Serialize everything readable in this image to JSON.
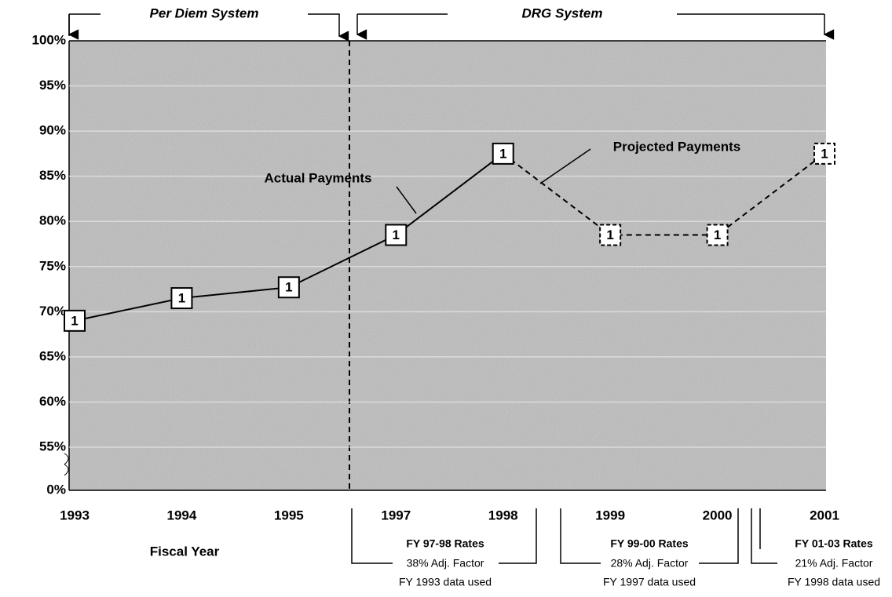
{
  "chart_data": {
    "type": "line",
    "categories": [
      "1993",
      "1994",
      "1995",
      "1997",
      "1998",
      "1999",
      "2000",
      "2001"
    ],
    "series": [
      {
        "name": "Actual Payments",
        "color": "#000000",
        "dashed": false,
        "values": [
          69,
          71.5,
          72.7,
          78.5,
          87.5,
          null,
          null,
          null
        ]
      },
      {
        "name": "Projected Payments",
        "color": "#000000",
        "dashed": true,
        "values": [
          null,
          null,
          null,
          null,
          87.5,
          78.5,
          78.5,
          87.5
        ]
      }
    ],
    "marker_label": "1",
    "ylim": [
      0,
      100
    ],
    "axis_break": [
      0,
      55
    ],
    "yticks": [
      {
        "value": 0,
        "label": "0%"
      },
      {
        "value": 55,
        "label": "55%"
      },
      {
        "value": 60,
        "label": "60%"
      },
      {
        "value": 65,
        "label": "65%"
      },
      {
        "value": 70,
        "label": "70%"
      },
      {
        "value": 75,
        "label": "75%"
      },
      {
        "value": 80,
        "label": "80%"
      },
      {
        "value": 85,
        "label": "85%"
      },
      {
        "value": 90,
        "label": "90%"
      },
      {
        "value": 95,
        "label": "95%"
      },
      {
        "value": 100,
        "label": "100%"
      }
    ],
    "grid": true,
    "xlabel": "Fiscal Year",
    "periods": [
      "Per Diem System",
      "DRG System"
    ],
    "rate_groups": [
      {
        "title": "FY 97-98 Rates",
        "factor": "38% Adj. Factor",
        "source": "FY 1993 data used"
      },
      {
        "title": "FY 99-00 Rates",
        "factor": "28% Adj. Factor",
        "source": "FY 1997 data used"
      },
      {
        "title": "FY 01-03 Rates",
        "factor": "21% Adj. Factor",
        "source": "FY 1998 data used"
      }
    ]
  }
}
